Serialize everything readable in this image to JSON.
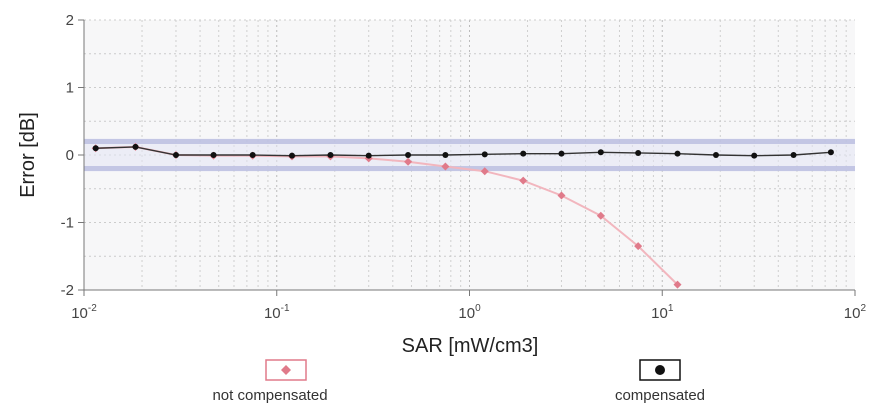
{
  "chart_data": {
    "type": "scatter",
    "title": "",
    "xlabel": "SAR [mW/cm3]",
    "ylabel": "Error [dB]",
    "xscale": "log",
    "xlim": [
      0.01,
      100
    ],
    "ylim": [
      -2,
      2
    ],
    "x_ticks": [
      {
        "value": 0.01,
        "base": "10",
        "exp": "-2"
      },
      {
        "value": 0.1,
        "base": "10",
        "exp": "-1"
      },
      {
        "value": 1,
        "base": "10",
        "exp": "0"
      },
      {
        "value": 10,
        "base": "10",
        "exp": "1"
      },
      {
        "value": 100,
        "base": "10",
        "exp": "2"
      }
    ],
    "y_ticks": [
      {
        "value": 2,
        "label": "2"
      },
      {
        "value": 1,
        "label": "1"
      },
      {
        "value": 0,
        "label": "0"
      },
      {
        "value": -1,
        "label": "-1"
      },
      {
        "value": -2,
        "label": "-2"
      }
    ],
    "grid": true,
    "tolerance_band": [
      -0.2,
      0.2
    ],
    "legend_position": "bottom",
    "series": [
      {
        "name": "not compensated",
        "color": "#e07a8a",
        "marker": "diamond",
        "points": [
          [
            0.0115,
            0.1
          ],
          [
            0.0185,
            0.12
          ],
          [
            0.03,
            0.0
          ],
          [
            0.047,
            -0.01
          ],
          [
            0.075,
            -0.01
          ],
          [
            0.12,
            -0.02
          ],
          [
            0.19,
            -0.02
          ],
          [
            0.3,
            -0.05
          ],
          [
            0.48,
            -0.1
          ],
          [
            0.75,
            -0.17
          ],
          [
            1.2,
            -0.24
          ],
          [
            1.9,
            -0.38
          ],
          [
            3.0,
            -0.6
          ],
          [
            4.8,
            -0.9
          ],
          [
            7.5,
            -1.35
          ],
          [
            12.0,
            -1.92
          ]
        ]
      },
      {
        "name": "compensated",
        "color": "#111111",
        "marker": "circle",
        "points": [
          [
            0.0115,
            0.1
          ],
          [
            0.0185,
            0.12
          ],
          [
            0.03,
            0.0
          ],
          [
            0.047,
            0.0
          ],
          [
            0.075,
            0.0
          ],
          [
            0.12,
            -0.01
          ],
          [
            0.19,
            0.0
          ],
          [
            0.3,
            -0.01
          ],
          [
            0.48,
            0.0
          ],
          [
            0.75,
            0.0
          ],
          [
            1.2,
            0.01
          ],
          [
            1.9,
            0.02
          ],
          [
            3.0,
            0.02
          ],
          [
            4.8,
            0.04
          ],
          [
            7.5,
            0.03
          ],
          [
            12.0,
            0.02
          ],
          [
            19.0,
            0.0
          ],
          [
            30.0,
            -0.01
          ],
          [
            48.0,
            0.0
          ],
          [
            75.0,
            0.04
          ]
        ]
      }
    ]
  },
  "legend": {
    "items": [
      {
        "label": "not compensated",
        "icon": "diamond-icon",
        "color": "#e07a8a"
      },
      {
        "label": "compensated",
        "icon": "filled-circle-icon",
        "color": "#111111"
      }
    ]
  }
}
